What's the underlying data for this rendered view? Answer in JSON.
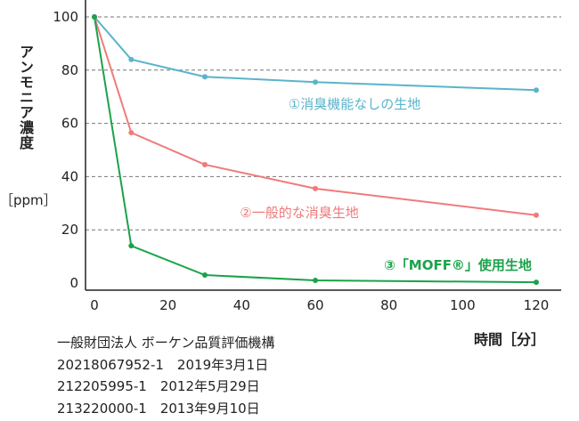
{
  "chart_data": {
    "type": "line",
    "ylabel": "アンモニア濃度",
    "yunit": "［ppm］",
    "xlabel": "時間［分］",
    "xlim": [
      0,
      120
    ],
    "ylim": [
      0,
      100
    ],
    "x_ticks": [
      0,
      20,
      40,
      60,
      80,
      100,
      120
    ],
    "y_ticks": [
      0,
      20,
      40,
      60,
      80,
      100
    ],
    "grid": "horizontal dashed",
    "series": [
      {
        "name": "①消臭機能なしの生地",
        "color": "#5ab4cc",
        "x": [
          0,
          10,
          30,
          60,
          120
        ],
        "y": [
          100,
          84,
          77.5,
          75.5,
          72.5
        ]
      },
      {
        "name": "②一般的な消臭生地",
        "color": "#ef7b7b",
        "x": [
          0,
          10,
          30,
          60,
          120
        ],
        "y": [
          100,
          56.5,
          44.5,
          35.5,
          25.5
        ]
      },
      {
        "name": "③「MOFF®」使用生地",
        "color": "#1aa34a",
        "x": [
          0,
          10,
          30,
          60,
          120
        ],
        "y": [
          100,
          14,
          3,
          1,
          0.3
        ]
      }
    ]
  },
  "notes": [
    "一般財団法人 ボーケン品質評価機構",
    "20218067952-1　2019年3月1日",
    "212205995-1　2012年5月29日",
    "213220000-1　2013年9月10日"
  ]
}
